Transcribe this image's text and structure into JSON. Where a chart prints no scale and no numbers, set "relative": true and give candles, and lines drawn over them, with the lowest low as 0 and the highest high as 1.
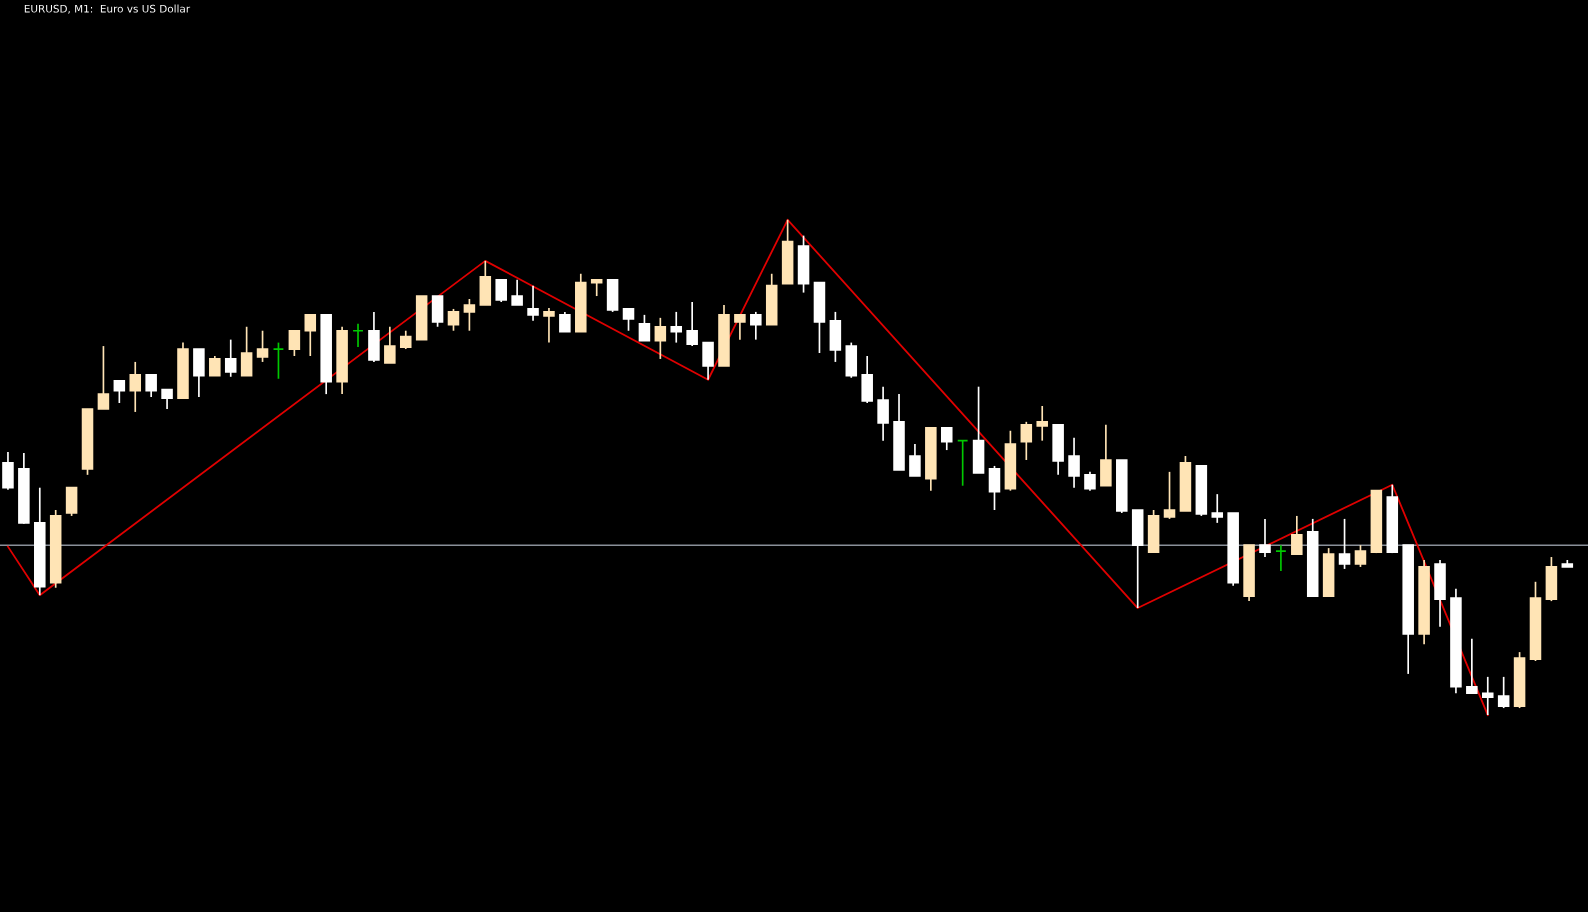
{
  "chart_data": {
    "type": "candlestick",
    "title": "EURUSD, M1:  Euro vs US Dollar",
    "relative": true,
    "categories": [
      null,
      null,
      null,
      null,
      null,
      null,
      null,
      null,
      null,
      null,
      null,
      null,
      null,
      null,
      null,
      null,
      null,
      null,
      null,
      null,
      null,
      null,
      null,
      null,
      null,
      null,
      null,
      null,
      null,
      null,
      null,
      null,
      null,
      null,
      null,
      null,
      null,
      null,
      null,
      null,
      null,
      null,
      null,
      null,
      null,
      null,
      null,
      null,
      null,
      null,
      null,
      null,
      null,
      null,
      null,
      null,
      null,
      null,
      null,
      null,
      null,
      null,
      null,
      null,
      null,
      null,
      null,
      null,
      null,
      null,
      null,
      null,
      null,
      null,
      null,
      null,
      null,
      null,
      null,
      null,
      null,
      null,
      null,
      null,
      null,
      null,
      null,
      null,
      null,
      null,
      null,
      null,
      null,
      null,
      null,
      null,
      null,
      null,
      null
    ],
    "ohlc": [
      [
        0.509,
        0.531,
        0.455,
        0.459
      ],
      [
        0.497,
        0.529,
        0.386,
        0.388
      ],
      [
        0.388,
        0.459,
        0.242,
        0.259
      ],
      [
        0.267,
        0.414,
        0.257,
        0.402
      ],
      [
        0.408,
        0.459,
        0.402,
        0.459
      ],
      [
        0.497,
        0.618,
        0.485,
        0.618
      ],
      [
        0.618,
        0.745,
        0.618,
        0.648
      ],
      [
        0.675,
        0.675,
        0.63,
        0.655
      ],
      [
        0.655,
        0.713,
        0.612,
        0.687
      ],
      [
        0.687,
        0.687,
        0.642,
        0.655
      ],
      [
        0.657,
        0.657,
        0.618,
        0.64
      ],
      [
        0.64,
        0.752,
        0.64,
        0.739
      ],
      [
        0.739,
        0.739,
        0.642,
        0.685
      ],
      [
        0.685,
        0.725,
        0.685,
        0.719
      ],
      [
        0.719,
        0.758,
        0.683,
        0.693
      ],
      [
        0.685,
        0.784,
        0.685,
        0.731
      ],
      [
        0.723,
        0.776,
        0.713,
        0.739
      ],
      [
        0.739,
        0.752,
        0.679,
        0.739
      ],
      [
        0.739,
        0.776,
        0.725,
        0.776
      ],
      [
        0.776,
        0.808,
        0.725,
        0.808
      ],
      [
        0.808,
        0.808,
        0.648,
        0.673
      ],
      [
        0.673,
        0.784,
        0.648,
        0.776
      ],
      [
        0.776,
        0.79,
        0.743,
        0.776
      ],
      [
        0.776,
        0.814,
        0.713,
        0.717
      ],
      [
        0.711,
        0.784,
        0.711,
        0.745
      ],
      [
        0.743,
        0.776,
        0.739,
        0.764
      ],
      [
        0.758,
        0.846,
        0.758,
        0.846
      ],
      [
        0.846,
        0.846,
        0.784,
        0.794
      ],
      [
        0.788,
        0.82,
        0.776,
        0.814
      ],
      [
        0.814,
        0.84,
        0.776,
        0.828
      ],
      [
        0.828,
        0.917,
        0.828,
        0.885
      ],
      [
        0.879,
        0.879,
        0.834,
        0.838
      ],
      [
        0.846,
        0.879,
        0.828,
        0.828
      ],
      [
        0.82,
        0.867,
        0.796,
        0.808
      ],
      [
        0.806,
        0.822,
        0.752,
        0.814
      ],
      [
        0.808,
        0.814,
        0.774,
        0.774
      ],
      [
        0.774,
        0.891,
        0.774,
        0.873
      ],
      [
        0.873,
        0.879,
        0.846,
        0.879
      ],
      [
        0.879,
        0.879,
        0.814,
        0.818
      ],
      [
        0.82,
        0.82,
        0.776,
        0.8
      ],
      [
        0.79,
        0.808,
        0.756,
        0.756
      ],
      [
        0.756,
        0.802,
        0.719,
        0.784
      ],
      [
        0.784,
        0.814,
        0.752,
        0.774
      ],
      [
        0.776,
        0.834,
        0.745,
        0.749
      ],
      [
        0.752,
        0.752,
        0.677,
        0.705
      ],
      [
        0.705,
        0.828,
        0.705,
        0.808
      ],
      [
        0.794,
        0.808,
        0.758,
        0.808
      ],
      [
        0.808,
        0.814,
        0.758,
        0.788
      ],
      [
        0.788,
        0.891,
        0.788,
        0.867
      ],
      [
        0.871,
        1,
        0.871,
        0.956
      ],
      [
        0.947,
        0.968,
        0.853,
        0.871
      ],
      [
        0.873,
        0.873,
        0.731,
        0.794
      ],
      [
        0.796,
        0.814,
        0.713,
        0.737
      ],
      [
        0.745,
        0.752,
        0.681,
        0.685
      ],
      [
        0.687,
        0.725,
        0.63,
        0.634
      ],
      [
        0.636,
        0.663,
        0.554,
        0.59
      ],
      [
        0.592,
        0.648,
        0.495,
        0.495
      ],
      [
        0.523,
        0.547,
        0.483,
        0.483
      ],
      [
        0.477,
        0.58,
        0.453,
        0.58
      ],
      [
        0.58,
        0.58,
        0.535,
        0.552
      ],
      [
        0.554,
        0.554,
        0.463,
        0.554
      ],
      [
        0.554,
        0.663,
        0.489,
        0.489
      ],
      [
        0.497,
        0.503,
        0.414,
        0.451
      ],
      [
        0.457,
        0.574,
        0.453,
        0.547
      ],
      [
        0.552,
        0.592,
        0.515,
        0.586
      ],
      [
        0.584,
        0.624,
        0.554,
        0.592
      ],
      [
        0.586,
        0.586,
        0.485,
        0.513
      ],
      [
        0.523,
        0.56,
        0.459,
        0.483
      ],
      [
        0.485,
        0.491,
        0.453,
        0.457
      ],
      [
        0.463,
        0.586,
        0.463,
        0.515
      ],
      [
        0.515,
        0.515,
        0.408,
        0.412
      ],
      [
        0.414,
        0.414,
        0.216,
        0.343
      ],
      [
        0.329,
        0.414,
        0.329,
        0.402
      ],
      [
        0.4,
        0.491,
        0.396,
        0.414
      ],
      [
        0.412,
        0.523,
        0.412,
        0.509
      ],
      [
        0.503,
        0.503,
        0.402,
        0.406
      ],
      [
        0.408,
        0.446,
        0.388,
        0.4
      ],
      [
        0.408,
        0.408,
        0.261,
        0.267
      ],
      [
        0.24,
        0.343,
        0.23,
        0.343
      ],
      [
        0.343,
        0.396,
        0.319,
        0.329
      ],
      [
        0.331,
        0.343,
        0.291,
        0.331
      ],
      [
        0.325,
        0.402,
        0.325,
        0.364
      ],
      [
        0.37,
        0.396,
        0.24,
        0.24
      ],
      [
        0.24,
        0.337,
        0.24,
        0.325
      ],
      [
        0.325,
        0.396,
        0.295,
        0.305
      ],
      [
        0.305,
        0.343,
        0.299,
        0.331
      ],
      [
        0.329,
        0.453,
        0.327,
        0.453
      ],
      [
        0.44,
        0.465,
        0.327,
        0.329
      ],
      [
        0.343,
        0.343,
        0.083,
        0.164
      ],
      [
        0.164,
        0.313,
        0.143,
        0.299
      ],
      [
        0.305,
        0.313,
        0.178,
        0.234
      ],
      [
        0.236,
        0.255,
        0.044,
        0.057
      ],
      [
        0.057,
        0.154,
        0.044,
        0.044
      ],
      [
        0.044,
        0.077,
        0,
        0.036
      ],
      [
        0.038,
        0.077,
        0.014,
        0.018
      ],
      [
        0.018,
        0.127,
        0.014,
        0.115
      ],
      [
        0.113,
        0.269,
        0.109,
        0.236
      ],
      [
        0.234,
        0.319,
        0.23,
        0.299
      ],
      [
        0.305,
        0.313,
        0.299,
        0.299
      ]
    ],
    "colors": [
      "#ffffff",
      "#ffffff",
      "#ffffff",
      "#ffe4b5",
      "#ffe4b5",
      "#ffe4b5",
      "#ffe4b5",
      "#ffffff",
      "#ffe4b5",
      "#ffffff",
      "#ffffff",
      "#ffe4b5",
      "#ffffff",
      "#ffe4b5",
      "#ffffff",
      "#ffe4b5",
      "#ffe4b5",
      "#00c800",
      "#ffe4b5",
      "#ffe4b5",
      "#ffffff",
      "#ffe4b5",
      "#00c800",
      "#ffffff",
      "#ffe4b5",
      "#ffe4b5",
      "#ffe4b5",
      "#ffffff",
      "#ffe4b5",
      "#ffe4b5",
      "#ffe4b5",
      "#ffffff",
      "#ffffff",
      "#ffffff",
      "#ffe4b5",
      "#ffffff",
      "#ffe4b5",
      "#ffe4b5",
      "#ffffff",
      "#ffffff",
      "#ffffff",
      "#ffe4b5",
      "#ffffff",
      "#ffffff",
      "#ffffff",
      "#ffe4b5",
      "#ffe4b5",
      "#ffffff",
      "#ffe4b5",
      "#ffe4b5",
      "#ffffff",
      "#ffffff",
      "#ffffff",
      "#ffffff",
      "#ffffff",
      "#ffffff",
      "#ffffff",
      "#ffffff",
      "#ffe4b5",
      "#ffffff",
      "#00c800",
      "#ffffff",
      "#ffffff",
      "#ffe4b5",
      "#ffe4b5",
      "#ffe4b5",
      "#ffffff",
      "#ffffff",
      "#ffffff",
      "#ffe4b5",
      "#ffffff",
      "#ffffff",
      "#ffe4b5",
      "#ffe4b5",
      "#ffe4b5",
      "#ffffff",
      "#ffffff",
      "#ffffff",
      "#ffe4b5",
      "#ffffff",
      "#00c800",
      "#ffe4b5",
      "#ffffff",
      "#ffe4b5",
      "#ffffff",
      "#ffe4b5",
      "#ffe4b5",
      "#ffffff",
      "#ffffff",
      "#ffe4b5",
      "#ffffff",
      "#ffffff",
      "#ffffff",
      "#ffffff",
      "#ffffff",
      "#ffe4b5",
      "#ffe4b5",
      "#ffe4b5",
      "#ffffff"
    ],
    "series": [
      {
        "type": "line",
        "color": "#e00000",
        "values": [
          0.34,
          null,
          0.242,
          null,
          null,
          null,
          null,
          null,
          null,
          null,
          null,
          null,
          null,
          null,
          null,
          null,
          null,
          null,
          null,
          null,
          null,
          null,
          null,
          null,
          null,
          null,
          null,
          null,
          null,
          null,
          0.917,
          null,
          null,
          null,
          null,
          null,
          null,
          null,
          null,
          null,
          null,
          null,
          null,
          null,
          0.677,
          null,
          null,
          null,
          null,
          1,
          null,
          null,
          null,
          null,
          null,
          null,
          null,
          null,
          null,
          null,
          null,
          null,
          null,
          null,
          null,
          null,
          null,
          null,
          null,
          null,
          null,
          0.216,
          null,
          null,
          null,
          null,
          null,
          null,
          null,
          null,
          null,
          null,
          null,
          null,
          null,
          null,
          null,
          0.465,
          null,
          null,
          null,
          null,
          null,
          0,
          null,
          null,
          null,
          null,
          null
        ]
      }
    ],
    "ref_lines": [
      {
        "axis": "y",
        "value": 0.343,
        "label": null,
        "color": "#8a9099",
        "line_style": "solid"
      }
    ]
  }
}
